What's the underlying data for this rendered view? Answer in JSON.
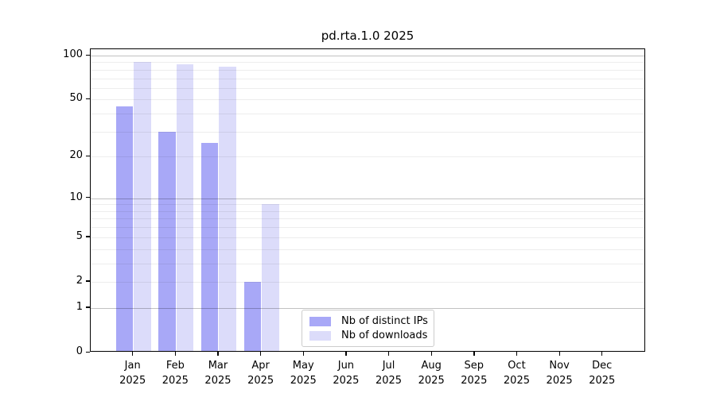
{
  "chart_data": {
    "type": "bar",
    "title": "pd.rta.1.0 2025",
    "categories": [
      "Jan",
      "Feb",
      "Mar",
      "Apr",
      "May",
      "Jun",
      "Jul",
      "Aug",
      "Sep",
      "Oct",
      "Nov",
      "Dec"
    ],
    "x_tick_sublabel": "2025",
    "series": [
      {
        "name": "Nb of distinct IPs",
        "color": "#a8a8f7",
        "values": [
          45,
          30,
          25,
          2,
          0,
          0,
          0,
          0,
          0,
          0,
          0,
          0
        ]
      },
      {
        "name": "Nb of downloads",
        "color": "#dcdcfa",
        "values": [
          90,
          87,
          84,
          9,
          0,
          0,
          0,
          0,
          0,
          0,
          0,
          0
        ]
      }
    ],
    "yscale": "log1p",
    "ylim": [
      0,
      112
    ],
    "yticks": [
      0,
      1,
      2,
      5,
      10,
      20,
      50,
      100
    ],
    "grid": {
      "major": [
        1,
        10,
        100
      ],
      "minor": [
        2,
        3,
        4,
        5,
        6,
        7,
        8,
        9,
        20,
        30,
        40,
        50,
        60,
        70,
        80,
        90
      ]
    },
    "legend_position": "lower center",
    "xlabel": "",
    "ylabel": ""
  }
}
